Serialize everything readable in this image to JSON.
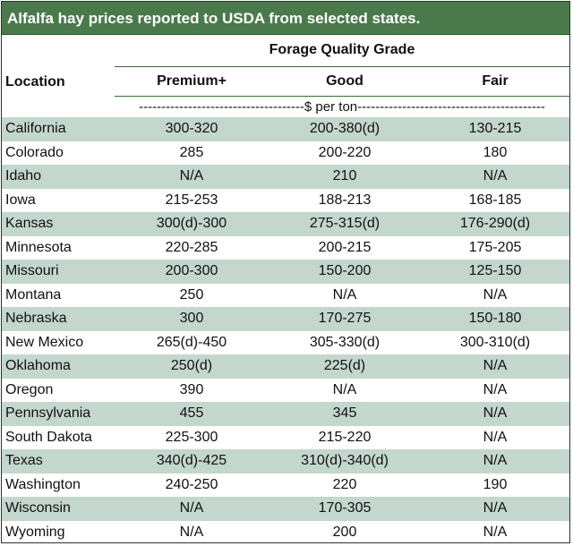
{
  "title": "Alfalfa hay prices reported to USDA from selected states.",
  "group_header": "Forage Quality Grade",
  "columns": {
    "location": "Location",
    "premium": "Premium+",
    "good": "Good",
    "fair": "Fair"
  },
  "unit_row": "-------------------------------------$ per ton------------------------------------------",
  "rows": [
    {
      "location": "California",
      "premium": "300-320",
      "good": "200-380(d)",
      "fair": "130-215"
    },
    {
      "location": "Colorado",
      "premium": "285",
      "good": "200-220",
      "fair": "180"
    },
    {
      "location": "Idaho",
      "premium": "N/A",
      "good": "210",
      "fair": "N/A"
    },
    {
      "location": "Iowa",
      "premium": "215-253",
      "good": "188-213",
      "fair": "168-185"
    },
    {
      "location": "Kansas",
      "premium": "300(d)-300",
      "good": "275-315(d)",
      "fair": "176-290(d)"
    },
    {
      "location": "Minnesota",
      "premium": "220-285",
      "good": "200-215",
      "fair": "175-205"
    },
    {
      "location": "Missouri",
      "premium": "200-300",
      "good": "150-200",
      "fair": "125-150"
    },
    {
      "location": "Montana",
      "premium": "250",
      "good": "N/A",
      "fair": "N/A"
    },
    {
      "location": "Nebraska",
      "premium": "300",
      "good": "170-275",
      "fair": "150-180"
    },
    {
      "location": "New Mexico",
      "premium": "265(d)-450",
      "good": "305-330(d)",
      "fair": "300-310(d)"
    },
    {
      "location": "Oklahoma",
      "premium": "250(d)",
      "good": "225(d)",
      "fair": "N/A"
    },
    {
      "location": "Oregon",
      "premium": "390",
      "good": "N/A",
      "fair": "N/A"
    },
    {
      "location": "Pennsylvania",
      "premium": "455",
      "good": "345",
      "fair": "N/A"
    },
    {
      "location": "South Dakota",
      "premium": "225-300",
      "good": "215-220",
      "fair": "N/A"
    },
    {
      "location": "Texas",
      "premium": "340(d)-425",
      "good": "310(d)-340(d)",
      "fair": "N/A"
    },
    {
      "location": "Washington",
      "premium": "240-250",
      "good": "220",
      "fair": "190"
    },
    {
      "location": "Wisconsin",
      "premium": "N/A",
      "good": "170-305",
      "fair": "N/A"
    },
    {
      "location": "Wyoming",
      "premium": "N/A",
      "good": "200",
      "fair": "N/A"
    }
  ],
  "colors": {
    "title_bg": "#4a7a4c",
    "stripe": "#c3d7cd",
    "rule": "#3c6b3e"
  }
}
